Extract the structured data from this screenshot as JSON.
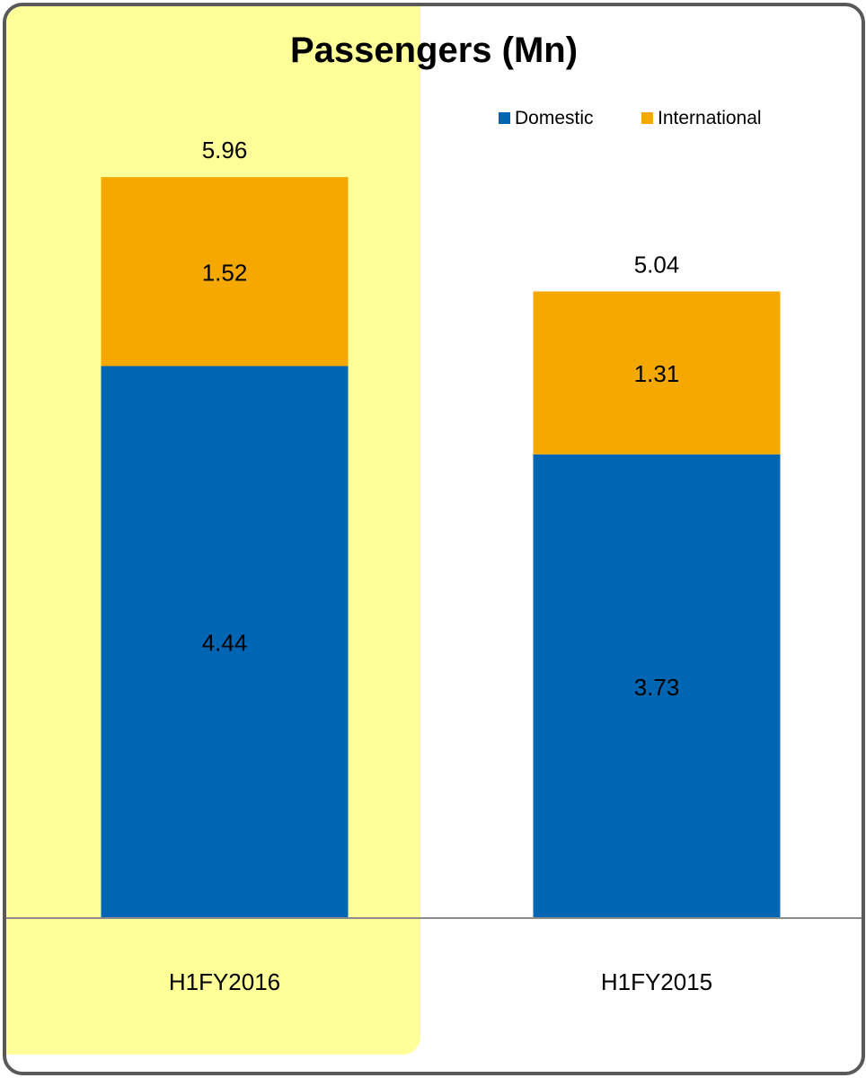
{
  "chart_data": {
    "type": "bar",
    "stacked": true,
    "title": "Passengers (Mn)",
    "categories": [
      "H1FY2016",
      "H1FY2015"
    ],
    "series": [
      {
        "name": "Domestic",
        "values": [
          4.44,
          3.73
        ],
        "color": "#0066B3"
      },
      {
        "name": "International",
        "values": [
          1.52,
          1.31
        ],
        "color": "#F5A800"
      }
    ],
    "totals": [
      5.96,
      5.04
    ],
    "highlight": {
      "category": "H1FY2016",
      "color": "#FFFF99"
    },
    "ylim": [
      0,
      6.9
    ],
    "grid": false,
    "legend_position": "top-right"
  }
}
